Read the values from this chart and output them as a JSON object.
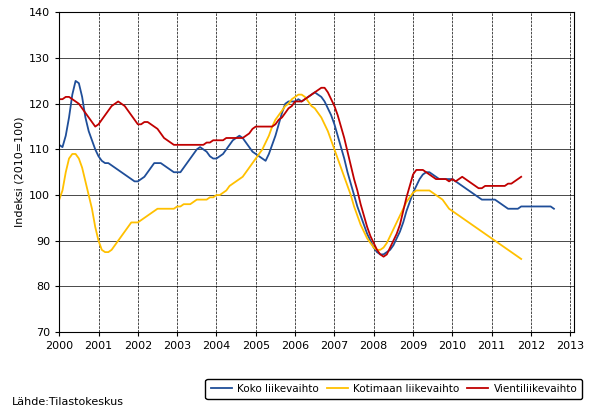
{
  "ylabel": "Indeksi (2010=100)",
  "source_text": "Lähde:Tilastokeskus",
  "ylim": [
    70,
    140
  ],
  "yticks": [
    70,
    80,
    90,
    100,
    110,
    120,
    130,
    140
  ],
  "xlim_start": 2000.0,
  "xlim_end": 2013.1,
  "xtick_years": [
    2000,
    2001,
    2002,
    2003,
    2004,
    2005,
    2006,
    2007,
    2008,
    2009,
    2010,
    2011,
    2012,
    2013
  ],
  "legend_labels": [
    "Koko liikevaihto",
    "Kotimaan liikevaihto",
    "Vientiliikevaihto"
  ],
  "colors": [
    "#1f4e99",
    "#ffc000",
    "#c00000"
  ],
  "line_width": 1.3,
  "koko": [
    111.0,
    110.5,
    113.0,
    117.0,
    122.0,
    125.0,
    124.5,
    121.5,
    117.0,
    114.0,
    112.0,
    110.0,
    108.5,
    107.5,
    107.0,
    107.0,
    106.5,
    106.0,
    105.5,
    105.0,
    104.5,
    104.0,
    103.5,
    103.0,
    103.0,
    103.5,
    104.0,
    105.0,
    106.0,
    107.0,
    107.0,
    107.0,
    106.5,
    106.0,
    105.5,
    105.0,
    105.0,
    105.0,
    106.0,
    107.0,
    108.0,
    109.0,
    110.0,
    110.5,
    110.0,
    109.5,
    108.5,
    108.0,
    108.0,
    108.5,
    109.0,
    110.0,
    111.0,
    112.0,
    112.5,
    113.0,
    112.5,
    111.5,
    110.5,
    109.5,
    109.0,
    108.5,
    108.0,
    107.5,
    109.0,
    111.0,
    113.0,
    115.5,
    118.0,
    120.0,
    120.5,
    120.5,
    120.5,
    121.0,
    120.5,
    121.0,
    121.5,
    122.0,
    122.5,
    122.0,
    121.5,
    120.5,
    119.0,
    117.5,
    115.5,
    113.0,
    110.5,
    108.0,
    105.0,
    102.5,
    100.0,
    97.5,
    95.5,
    93.5,
    91.5,
    90.0,
    88.5,
    87.5,
    87.0,
    87.0,
    87.5,
    88.0,
    89.0,
    90.5,
    92.0,
    94.0,
    96.5,
    98.5,
    100.5,
    102.0,
    103.5,
    104.5,
    105.0,
    105.0,
    104.5,
    104.0,
    103.5,
    103.5,
    103.5,
    103.5,
    103.5,
    103.0,
    102.5,
    102.0,
    101.5,
    101.0,
    100.5,
    100.0,
    99.5,
    99.0,
    99.0,
    99.0,
    99.0,
    99.0,
    98.5,
    98.0,
    97.5,
    97.0,
    97.0,
    97.0,
    97.0,
    97.5,
    97.5,
    97.5,
    97.5,
    97.5,
    97.5,
    97.5,
    97.5,
    97.5,
    97.5,
    97.0
  ],
  "kotimaan": [
    99.0,
    101.0,
    105.0,
    108.0,
    109.0,
    109.0,
    108.0,
    106.0,
    103.0,
    100.0,
    97.0,
    93.0,
    90.0,
    88.0,
    87.5,
    87.5,
    88.0,
    89.0,
    90.0,
    91.0,
    92.0,
    93.0,
    94.0,
    94.0,
    94.0,
    94.5,
    95.0,
    95.5,
    96.0,
    96.5,
    97.0,
    97.0,
    97.0,
    97.0,
    97.0,
    97.0,
    97.5,
    97.5,
    98.0,
    98.0,
    98.0,
    98.5,
    99.0,
    99.0,
    99.0,
    99.0,
    99.5,
    99.5,
    100.0,
    100.0,
    100.5,
    101.0,
    102.0,
    102.5,
    103.0,
    103.5,
    104.0,
    105.0,
    106.0,
    107.0,
    108.0,
    109.0,
    110.0,
    111.5,
    113.0,
    115.0,
    116.5,
    117.5,
    118.5,
    119.5,
    120.0,
    121.0,
    121.5,
    122.0,
    122.0,
    121.5,
    120.5,
    119.5,
    119.0,
    118.0,
    117.0,
    115.5,
    114.0,
    112.0,
    110.0,
    108.0,
    106.0,
    104.0,
    102.0,
    100.0,
    97.5,
    95.5,
    93.5,
    92.0,
    90.5,
    89.5,
    88.5,
    88.0,
    88.0,
    88.5,
    89.5,
    91.0,
    92.5,
    94.0,
    95.5,
    97.0,
    98.5,
    99.5,
    100.5,
    101.0,
    101.0,
    101.0,
    101.0,
    101.0,
    100.5,
    100.0,
    99.5,
    99.0,
    98.0,
    97.0,
    96.5,
    96.0,
    95.5,
    95.0,
    94.5,
    94.0,
    93.5,
    93.0,
    92.5,
    92.0,
    91.5,
    91.0,
    90.5,
    90.0,
    89.5,
    89.0,
    88.5,
    88.0,
    87.5,
    87.0,
    86.5,
    86.0
  ],
  "vienti": [
    121.0,
    121.0,
    121.5,
    121.5,
    121.0,
    120.5,
    120.0,
    119.0,
    118.0,
    117.0,
    116.0,
    115.0,
    115.5,
    116.5,
    117.5,
    118.5,
    119.5,
    120.0,
    120.5,
    120.0,
    119.5,
    118.5,
    117.5,
    116.5,
    115.5,
    115.5,
    116.0,
    116.0,
    115.5,
    115.0,
    114.5,
    113.5,
    112.5,
    112.0,
    111.5,
    111.0,
    111.0,
    111.0,
    111.0,
    111.0,
    111.0,
    111.0,
    111.0,
    111.0,
    111.0,
    111.5,
    111.5,
    112.0,
    112.0,
    112.0,
    112.0,
    112.5,
    112.5,
    112.5,
    112.5,
    112.5,
    112.5,
    113.0,
    113.5,
    114.5,
    115.0,
    115.0,
    115.0,
    115.0,
    115.0,
    115.0,
    115.5,
    116.5,
    117.0,
    118.0,
    119.0,
    119.5,
    120.5,
    120.5,
    120.5,
    121.0,
    121.5,
    122.0,
    122.5,
    123.0,
    123.5,
    123.5,
    122.5,
    121.0,
    119.5,
    117.5,
    115.0,
    112.5,
    109.5,
    106.5,
    103.5,
    101.0,
    98.0,
    95.5,
    93.0,
    91.0,
    89.5,
    88.0,
    87.0,
    86.5,
    87.0,
    88.5,
    90.0,
    91.5,
    93.5,
    96.5,
    99.5,
    102.0,
    104.5,
    105.5,
    105.5,
    105.5,
    105.0,
    104.5,
    104.0,
    103.5,
    103.5,
    103.5,
    103.5,
    103.0,
    103.5,
    103.0,
    103.5,
    104.0,
    103.5,
    103.0,
    102.5,
    102.0,
    101.5,
    101.5,
    102.0,
    102.0,
    102.0,
    102.0,
    102.0,
    102.0,
    102.0,
    102.5,
    102.5,
    103.0,
    103.5,
    104.0
  ]
}
